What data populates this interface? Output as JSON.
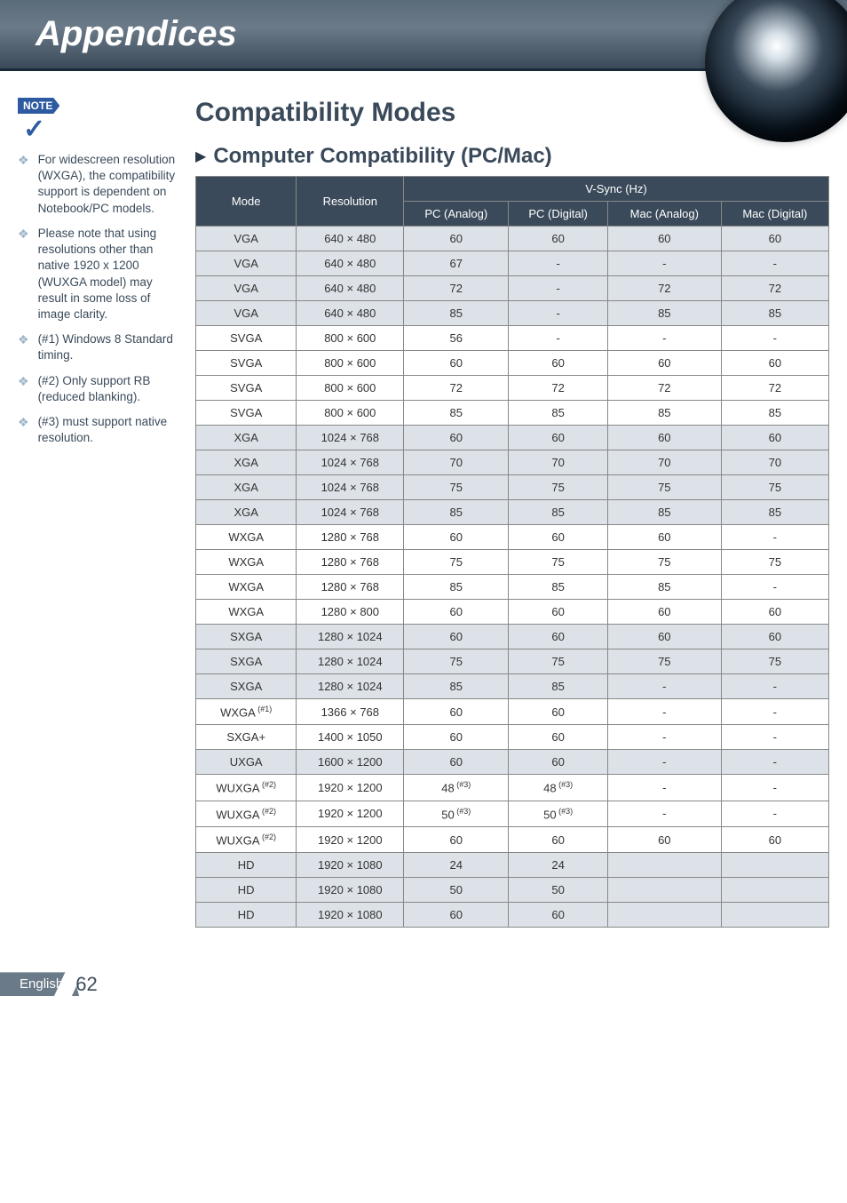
{
  "header": {
    "title": "Appendices"
  },
  "section": {
    "h2": "Compatibility Modes",
    "h3": "Computer Compatibility (PC/Mac)"
  },
  "notes": {
    "badge": "NOTE",
    "items": [
      "For widescreen resolution (WXGA), the compatibility support is dependent on Notebook/PC models.",
      "Please note that using resolutions other than native 1920 x 1200 (WUXGA model) may result in some loss of image clarity.",
      "(#1) Windows 8 Standard timing.",
      "(#2) Only support RB (reduced blanking).",
      "(#3) must support native resolution."
    ]
  },
  "table": {
    "head": {
      "mode": "Mode",
      "resolution": "Resolution",
      "vsync": "V-Sync (Hz)",
      "pc_a": "PC (Analog)",
      "pc_d": "PC (Digital)",
      "mac_a": "Mac (Analog)",
      "mac_d": "Mac (Digital)"
    },
    "rows": [
      {
        "alt": true,
        "mode": "VGA",
        "res": "640 × 480",
        "c": [
          "60",
          "60",
          "60",
          "60"
        ]
      },
      {
        "alt": true,
        "mode": "VGA",
        "res": "640 × 480",
        "c": [
          "67",
          "-",
          "-",
          "-"
        ]
      },
      {
        "alt": true,
        "mode": "VGA",
        "res": "640 × 480",
        "c": [
          "72",
          "-",
          "72",
          "72"
        ]
      },
      {
        "alt": true,
        "mode": "VGA",
        "res": "640 × 480",
        "c": [
          "85",
          "-",
          "85",
          "85"
        ]
      },
      {
        "alt": false,
        "mode": "SVGA",
        "res": "800 × 600",
        "c": [
          "56",
          "-",
          "-",
          "-"
        ]
      },
      {
        "alt": false,
        "mode": "SVGA",
        "res": "800 × 600",
        "c": [
          "60",
          "60",
          "60",
          "60"
        ]
      },
      {
        "alt": false,
        "mode": "SVGA",
        "res": "800 × 600",
        "c": [
          "72",
          "72",
          "72",
          "72"
        ]
      },
      {
        "alt": false,
        "mode": "SVGA",
        "res": "800 × 600",
        "c": [
          "85",
          "85",
          "85",
          "85"
        ]
      },
      {
        "alt": true,
        "mode": "XGA",
        "res": "1024 × 768",
        "c": [
          "60",
          "60",
          "60",
          "60"
        ]
      },
      {
        "alt": true,
        "mode": "XGA",
        "res": "1024 × 768",
        "c": [
          "70",
          "70",
          "70",
          "70"
        ]
      },
      {
        "alt": true,
        "mode": "XGA",
        "res": "1024 × 768",
        "c": [
          "75",
          "75",
          "75",
          "75"
        ]
      },
      {
        "alt": true,
        "mode": "XGA",
        "res": "1024 × 768",
        "c": [
          "85",
          "85",
          "85",
          "85"
        ]
      },
      {
        "alt": false,
        "mode": "WXGA",
        "res": "1280 × 768",
        "c": [
          "60",
          "60",
          "60",
          "-"
        ]
      },
      {
        "alt": false,
        "mode": "WXGA",
        "res": "1280 × 768",
        "c": [
          "75",
          "75",
          "75",
          "75"
        ]
      },
      {
        "alt": false,
        "mode": "WXGA",
        "res": "1280 × 768",
        "c": [
          "85",
          "85",
          "85",
          "-"
        ]
      },
      {
        "alt": false,
        "mode": "WXGA",
        "res": "1280 × 800",
        "c": [
          "60",
          "60",
          "60",
          "60"
        ]
      },
      {
        "alt": true,
        "mode": "SXGA",
        "res": "1280 × 1024",
        "c": [
          "60",
          "60",
          "60",
          "60"
        ]
      },
      {
        "alt": true,
        "mode": "SXGA",
        "res": "1280 × 1024",
        "c": [
          "75",
          "75",
          "75",
          "75"
        ]
      },
      {
        "alt": true,
        "mode": "SXGA",
        "res": "1280 × 1024",
        "c": [
          "85",
          "85",
          "-",
          "-"
        ]
      },
      {
        "alt": false,
        "mode": "WXGA",
        "sup": "(#1)",
        "res": "1366 × 768",
        "c": [
          "60",
          "60",
          "-",
          "-"
        ]
      },
      {
        "alt": false,
        "mode": "SXGA+",
        "res": "1400 × 1050",
        "c": [
          "60",
          "60",
          "-",
          "-"
        ]
      },
      {
        "alt": true,
        "mode": "UXGA",
        "res": "1600 × 1200",
        "c": [
          "60",
          "60",
          "-",
          "-"
        ]
      },
      {
        "alt": false,
        "mode": "WUXGA",
        "sup": "(#2)",
        "res": "1920 × 1200",
        "c": [
          "48",
          "48",
          "-",
          "-"
        ],
        "csup": [
          "(#3)",
          "(#3)",
          "",
          ""
        ]
      },
      {
        "alt": false,
        "mode": "WUXGA",
        "sup": "(#2)",
        "res": "1920 × 1200",
        "c": [
          "50",
          "50",
          "-",
          "-"
        ],
        "csup": [
          "(#3)",
          "(#3)",
          "",
          ""
        ]
      },
      {
        "alt": false,
        "mode": "WUXGA",
        "sup": "(#2)",
        "res": "1920 × 1200",
        "c": [
          "60",
          "60",
          "60",
          "60"
        ]
      },
      {
        "alt": true,
        "mode": "HD",
        "res": "1920 × 1080",
        "c": [
          "24",
          "24",
          "",
          ""
        ]
      },
      {
        "alt": true,
        "mode": "HD",
        "res": "1920 × 1080",
        "c": [
          "50",
          "50",
          "",
          ""
        ]
      },
      {
        "alt": true,
        "mode": "HD",
        "res": "1920 × 1080",
        "c": [
          "60",
          "60",
          "",
          ""
        ]
      }
    ]
  },
  "footer": {
    "lang": "English",
    "page": "62"
  },
  "colors": {
    "header_bg_top": "#5a6b7a",
    "header_bg_bottom": "#3a4a5a",
    "th_bg": "#3a4a5a",
    "row_alt_bg": "#dce2e7",
    "accent_blue": "#2d5aa0",
    "bullet": "#9db4c8"
  }
}
